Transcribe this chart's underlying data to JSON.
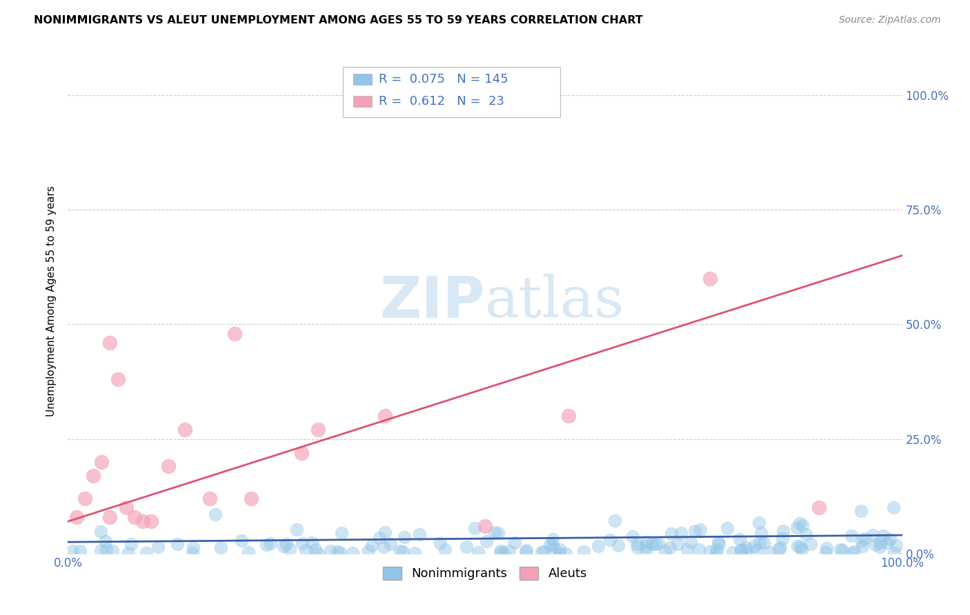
{
  "title": "NONIMMIGRANTS VS ALEUT UNEMPLOYMENT AMONG AGES 55 TO 59 YEARS CORRELATION CHART",
  "source": "Source: ZipAtlas.com",
  "ylabel": "Unemployment Among Ages 55 to 59 years",
  "xlim": [
    0.0,
    1.0
  ],
  "ylim": [
    0.0,
    1.1
  ],
  "x_tick_labels": [
    "0.0%",
    "100.0%"
  ],
  "y_tick_labels": [
    "0.0%",
    "25.0%",
    "50.0%",
    "75.0%",
    "100.0%"
  ],
  "y_ticks": [
    0.0,
    0.25,
    0.5,
    0.75,
    1.0
  ],
  "nonimmigrant_color": "#92C5E8",
  "aleut_color": "#F4A0B5",
  "nonimmigrant_line_color": "#3A5FA8",
  "aleut_line_color": "#E05070",
  "R_nonimmigrant": 0.075,
  "N_nonimmigrant": 145,
  "R_aleut": 0.612,
  "N_aleut": 23,
  "legend_text_color": "#4472C4",
  "background_color": "#FFFFFF",
  "grid_color": "#CCCCCC",
  "aleut_line_x0": 0.0,
  "aleut_line_y0": 0.07,
  "aleut_line_x1": 1.0,
  "aleut_line_y1": 0.65,
  "nonim_line_x0": 0.0,
  "nonim_line_y0": 0.025,
  "nonim_line_x1": 1.0,
  "nonim_line_y1": 0.04,
  "aleut_pts_x": [
    0.01,
    0.02,
    0.03,
    0.04,
    0.05,
    0.05,
    0.06,
    0.07,
    0.08,
    0.09,
    0.1,
    0.12,
    0.14,
    0.17,
    0.2,
    0.22,
    0.28,
    0.3,
    0.38,
    0.5,
    0.6,
    0.77,
    0.9
  ],
  "aleut_pts_y": [
    0.08,
    0.12,
    0.17,
    0.2,
    0.08,
    0.46,
    0.38,
    0.1,
    0.08,
    0.07,
    0.07,
    0.19,
    0.27,
    0.12,
    0.48,
    0.12,
    0.22,
    0.27,
    0.3,
    0.06,
    0.3,
    0.6,
    0.1
  ]
}
